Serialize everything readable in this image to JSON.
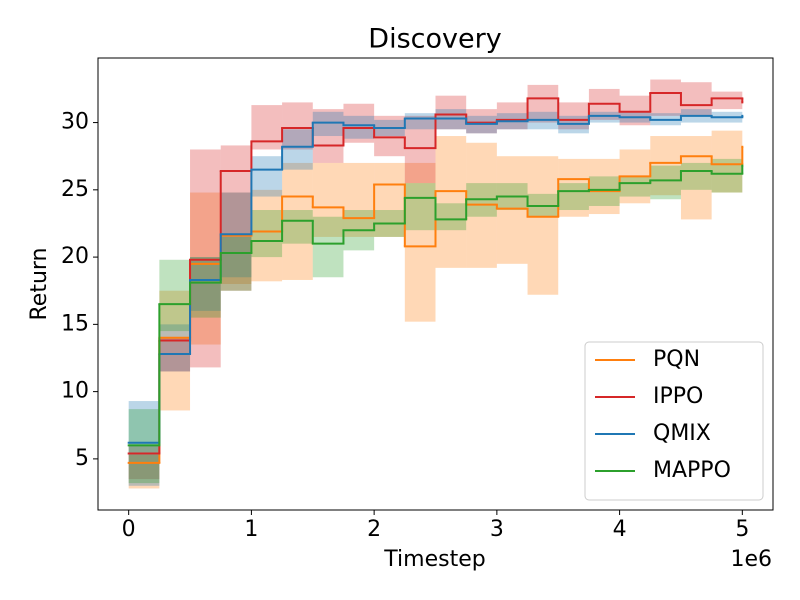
{
  "chart_data": {
    "type": "line",
    "title": "Discovery",
    "x_label": "Timestep",
    "y_label": "Return",
    "x_offset_label": "1e6",
    "x": [
      0,
      0.25,
      0.5,
      0.75,
      1.0,
      1.25,
      1.5,
      1.75,
      2.0,
      2.25,
      2.5,
      2.75,
      3.0,
      3.25,
      3.5,
      3.75,
      4.0,
      4.25,
      4.5,
      4.75,
      5.0
    ],
    "series": [
      {
        "name": "PQN",
        "color": "#ff7f0e",
        "values": [
          4.7,
          14,
          19.5,
          21.6,
          21.9,
          24.5,
          23.7,
          22.9,
          25.4,
          20.8,
          24.9,
          23.9,
          23.6,
          23.0,
          25.8,
          24.9,
          26.0,
          27.0,
          27.5,
          26.9,
          28.2
        ],
        "lower": [
          2.8,
          8.6,
          13.5,
          18,
          18.2,
          18.3,
          21.5,
          21.5,
          21.5,
          15.2,
          19.2,
          19.2,
          19.5,
          17.2,
          23,
          23.2,
          24,
          24.6,
          22.8,
          24.8,
          25.2
        ],
        "upper": [
          5.3,
          17.5,
          24.8,
          24.8,
          25,
          27,
          27,
          27,
          27,
          27,
          29,
          28.5,
          27.5,
          27.5,
          27.3,
          27.3,
          28,
          29,
          29,
          29.4,
          29.4
        ]
      },
      {
        "name": "IPPO",
        "color": "#d62728",
        "values": [
          5.4,
          13.8,
          19.8,
          26.4,
          28.6,
          29.6,
          28.3,
          29.6,
          28.9,
          28.1,
          30.6,
          30.0,
          30.2,
          31.8,
          30.2,
          31.4,
          30.8,
          32.2,
          31.3,
          31.8,
          31.5
        ],
        "lower": [
          3.5,
          11.5,
          11.8,
          17.5,
          28,
          28,
          27,
          28.5,
          27.5,
          25.5,
          29.5,
          29.2,
          29.5,
          30,
          29.5,
          30.2,
          29.8,
          30.5,
          30.5,
          31,
          31
        ],
        "upper": [
          6,
          14,
          28,
          28.3,
          31.3,
          31.5,
          31,
          31.4,
          30.5,
          30.5,
          32,
          31,
          31.5,
          32.8,
          31.5,
          32.5,
          32,
          33.2,
          33,
          32.3,
          32.3
        ]
      },
      {
        "name": "QMIX",
        "color": "#1f77b4",
        "values": [
          6.2,
          12.8,
          18.3,
          21.7,
          26.5,
          28.2,
          30.0,
          29.8,
          29.6,
          30.3,
          30.3,
          29.9,
          30.1,
          30.2,
          29.9,
          30.5,
          30.4,
          30.2,
          30.5,
          30.4,
          30.5
        ],
        "lower": [
          3,
          11.5,
          16,
          18.5,
          24.5,
          26.5,
          29,
          28.8,
          29,
          29.5,
          29.5,
          29.2,
          29.5,
          29.5,
          29.2,
          30,
          30,
          29.8,
          30,
          30,
          30
        ],
        "upper": [
          9.3,
          15,
          20,
          24.8,
          27.5,
          29.5,
          30.8,
          30.5,
          30.2,
          30.7,
          31,
          30.5,
          30.7,
          30.8,
          30.5,
          30.8,
          30.8,
          30.7,
          31,
          30.8,
          30.8
        ]
      },
      {
        "name": "MAPPO",
        "color": "#2ca02c",
        "values": [
          6.0,
          16.5,
          18.1,
          20.3,
          21.2,
          22.7,
          21.0,
          22.0,
          22.5,
          24.4,
          22.8,
          24.3,
          24.5,
          23.8,
          24.9,
          25.0,
          25.5,
          25.7,
          26.4,
          26.2,
          26.8
        ],
        "lower": [
          3.2,
          14.5,
          15.5,
          17.5,
          20,
          21,
          18.5,
          20.5,
          21.5,
          22,
          22,
          23,
          23.5,
          23,
          23.5,
          23.8,
          24.5,
          24.3,
          25,
          24.8,
          25.2
        ],
        "upper": [
          8.7,
          19.8,
          20,
          21.5,
          23.5,
          23.5,
          23,
          23.5,
          23.5,
          25.5,
          24,
          25.5,
          25.5,
          24.7,
          25.5,
          26,
          26,
          26.8,
          27,
          27.3,
          27.5
        ]
      }
    ],
    "xlim": [
      -0.25,
      5.25
    ],
    "ylim": [
      1.2,
      34.8
    ],
    "xticks": [
      0,
      1,
      2,
      3,
      4,
      5
    ],
    "yticks": [
      5,
      10,
      15,
      20,
      25,
      30
    ],
    "legend": "lower right",
    "band_opacity": 0.3
  }
}
